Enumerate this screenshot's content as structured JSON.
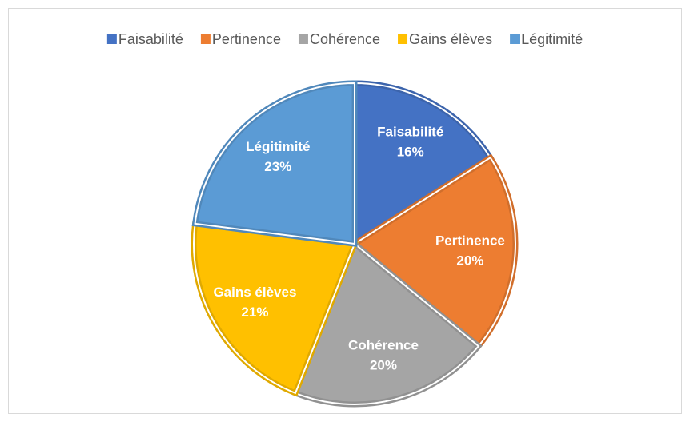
{
  "chart_data": {
    "type": "pie",
    "categories": [
      "Faisabilité",
      "Pertinence",
      "Cohérence",
      "Gains élèves",
      "Légitimité"
    ],
    "values": [
      16,
      20,
      20,
      21,
      23
    ],
    "value_labels": [
      "16%",
      "20%",
      "20%",
      "21%",
      "23%"
    ],
    "colors": [
      "#4472c4",
      "#ed7d31",
      "#a5a5a5",
      "#ffc000",
      "#5b9bd5"
    ],
    "legend": "top"
  }
}
